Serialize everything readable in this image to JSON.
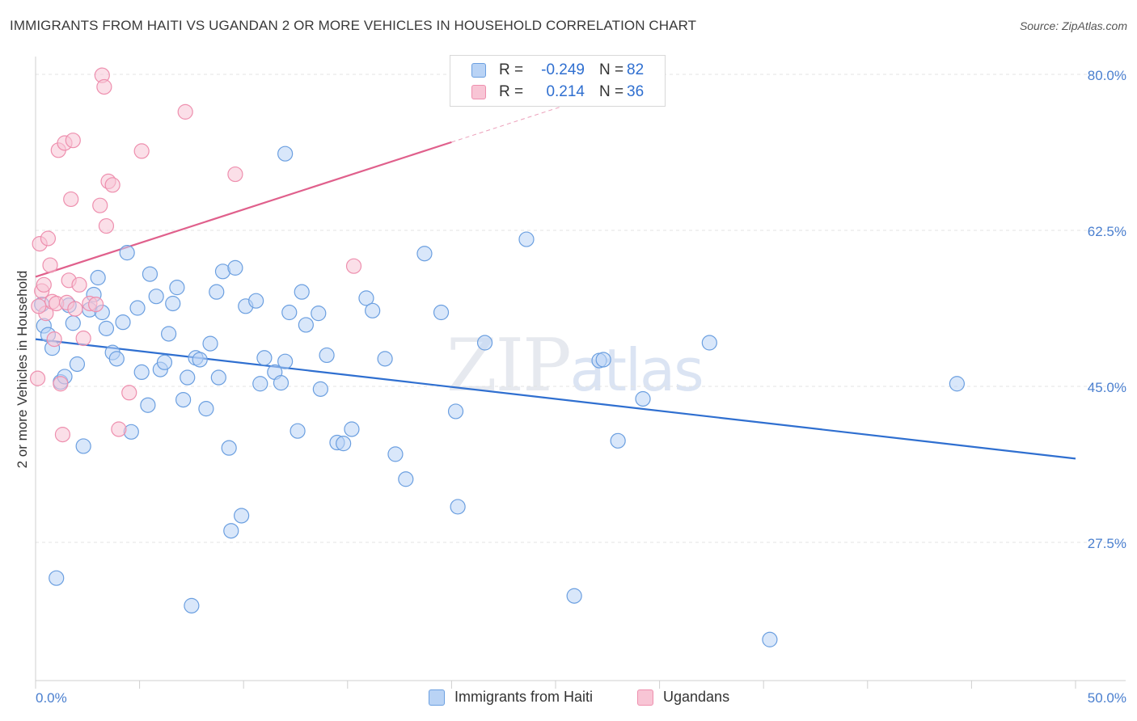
{
  "title": "IMMIGRANTS FROM HAITI VS UGANDAN 2 OR MORE VEHICLES IN HOUSEHOLD CORRELATION CHART",
  "source": "Source: ZipAtlas.com",
  "watermark": {
    "zip": "ZIP",
    "atlas": "atlas"
  },
  "legend": {
    "r_label": "R =",
    "n_label": "N =",
    "rows": [
      {
        "r": "-0.249",
        "n": "82"
      },
      {
        "r": "0.214",
        "n": "36"
      }
    ]
  },
  "colors": {
    "blue_fill": "#b9d3f5",
    "blue_stroke": "#6b9fe0",
    "blue_line": "#2f6fd0",
    "pink_fill": "#f8c5d5",
    "pink_stroke": "#ee8fae",
    "pink_line": "#e0608c",
    "grid": "#e3e3e3",
    "axis_text": "#4a7fcf"
  },
  "chart_data": {
    "type": "scatter",
    "title": "IMMIGRANTS FROM HAITI VS UGANDAN 2 OR MORE VEHICLES IN HOUSEHOLD CORRELATION CHART",
    "xlabel": "",
    "ylabel": "2 or more Vehicles in Household",
    "xlim": [
      0,
      50
    ],
    "ylim": [
      12,
      82
    ],
    "x_tick_labels": [
      "0.0%",
      "50.0%"
    ],
    "y_ticks": [
      27.5,
      45.0,
      62.5,
      80.0
    ],
    "y_tick_labels": [
      "27.5%",
      "45.0%",
      "62.5%",
      "80.0%"
    ],
    "grid": true,
    "legend_position": "top-center",
    "series": [
      {
        "name": "Immigrants from Haiti",
        "color": "#b9d3f5",
        "trend": {
          "x": [
            0,
            50
          ],
          "y": [
            50.3,
            36.9
          ]
        },
        "points": [
          [
            0.3,
            54.2
          ],
          [
            0.4,
            51.8
          ],
          [
            0.6,
            50.8
          ],
          [
            0.8,
            49.3
          ],
          [
            1.0,
            23.5
          ],
          [
            1.2,
            45.5
          ],
          [
            1.4,
            46.1
          ],
          [
            1.6,
            54.1
          ],
          [
            1.8,
            52.1
          ],
          [
            2.0,
            47.5
          ],
          [
            2.3,
            38.3
          ],
          [
            2.6,
            53.6
          ],
          [
            2.8,
            55.3
          ],
          [
            3.0,
            57.2
          ],
          [
            3.2,
            53.3
          ],
          [
            3.4,
            51.5
          ],
          [
            3.7,
            48.8
          ],
          [
            3.9,
            48.1
          ],
          [
            4.2,
            52.2
          ],
          [
            4.4,
            60.0
          ],
          [
            4.6,
            39.9
          ],
          [
            4.9,
            53.8
          ],
          [
            5.1,
            46.6
          ],
          [
            5.4,
            42.9
          ],
          [
            5.5,
            57.6
          ],
          [
            5.8,
            55.1
          ],
          [
            6.0,
            46.9
          ],
          [
            6.2,
            47.7
          ],
          [
            6.4,
            50.9
          ],
          [
            6.6,
            54.3
          ],
          [
            6.8,
            56.1
          ],
          [
            7.1,
            43.5
          ],
          [
            7.3,
            46.0
          ],
          [
            7.5,
            20.4
          ],
          [
            7.7,
            48.2
          ],
          [
            7.9,
            48.0
          ],
          [
            8.2,
            42.5
          ],
          [
            8.4,
            49.8
          ],
          [
            8.7,
            55.6
          ],
          [
            8.8,
            46.0
          ],
          [
            9.0,
            57.9
          ],
          [
            9.3,
            38.1
          ],
          [
            9.4,
            28.8
          ],
          [
            9.6,
            58.3
          ],
          [
            9.9,
            30.5
          ],
          [
            10.1,
            54.0
          ],
          [
            10.6,
            54.6
          ],
          [
            10.8,
            45.3
          ],
          [
            11.0,
            48.2
          ],
          [
            11.5,
            46.6
          ],
          [
            11.8,
            45.4
          ],
          [
            12.0,
            47.8
          ],
          [
            12.2,
            53.3
          ],
          [
            12.6,
            40.0
          ],
          [
            12.8,
            55.6
          ],
          [
            13.0,
            51.9
          ],
          [
            13.6,
            53.2
          ],
          [
            13.7,
            44.7
          ],
          [
            14.0,
            48.5
          ],
          [
            14.5,
            38.7
          ],
          [
            14.8,
            38.6
          ],
          [
            15.2,
            40.2
          ],
          [
            15.9,
            54.9
          ],
          [
            16.2,
            53.5
          ],
          [
            16.8,
            48.1
          ],
          [
            17.3,
            37.4
          ],
          [
            17.8,
            34.6
          ],
          [
            18.7,
            59.9
          ],
          [
            19.5,
            53.3
          ],
          [
            20.2,
            42.2
          ],
          [
            20.3,
            31.5
          ],
          [
            21.6,
            49.9
          ],
          [
            23.6,
            61.5
          ],
          [
            25.9,
            21.5
          ],
          [
            27.1,
            47.9
          ],
          [
            27.3,
            48.0
          ],
          [
            28.0,
            38.9
          ],
          [
            29.2,
            43.6
          ],
          [
            32.4,
            49.9
          ],
          [
            35.3,
            16.6
          ],
          [
            44.3,
            45.3
          ],
          [
            12.0,
            71.1
          ]
        ]
      },
      {
        "name": "Ugandans",
        "color": "#f8c5d5",
        "trend": {
          "x": [
            0,
            20
          ],
          "y": [
            57.3,
            72.4
          ]
        },
        "points": [
          [
            0.1,
            45.9
          ],
          [
            0.2,
            61.0
          ],
          [
            0.3,
            55.7
          ],
          [
            0.4,
            56.4
          ],
          [
            0.5,
            53.2
          ],
          [
            0.6,
            61.6
          ],
          [
            0.7,
            58.6
          ],
          [
            0.8,
            54.5
          ],
          [
            0.9,
            50.3
          ],
          [
            1.0,
            54.3
          ],
          [
            1.1,
            71.5
          ],
          [
            1.2,
            45.3
          ],
          [
            1.3,
            39.6
          ],
          [
            1.4,
            72.3
          ],
          [
            1.5,
            54.4
          ],
          [
            1.6,
            56.9
          ],
          [
            1.7,
            66.0
          ],
          [
            1.8,
            72.6
          ],
          [
            1.9,
            53.7
          ],
          [
            2.1,
            56.4
          ],
          [
            2.3,
            50.4
          ],
          [
            2.6,
            54.3
          ],
          [
            3.1,
            65.3
          ],
          [
            3.2,
            79.9
          ],
          [
            3.3,
            78.6
          ],
          [
            3.4,
            63.0
          ],
          [
            3.5,
            68.0
          ],
          [
            3.7,
            67.6
          ],
          [
            4.0,
            40.2
          ],
          [
            4.5,
            44.3
          ],
          [
            5.1,
            71.4
          ],
          [
            7.2,
            75.8
          ],
          [
            9.6,
            68.8
          ],
          [
            15.3,
            58.5
          ],
          [
            0.15,
            54.0
          ],
          [
            2.9,
            54.2
          ]
        ]
      }
    ]
  }
}
